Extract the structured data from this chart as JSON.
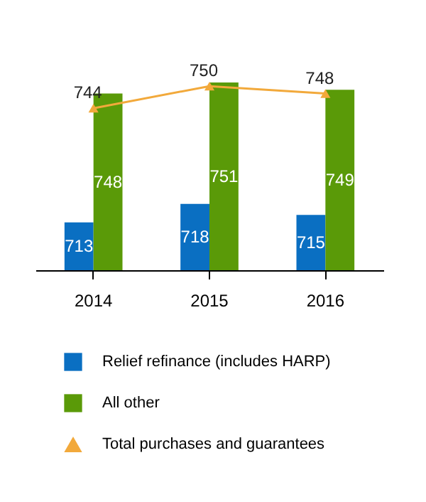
{
  "chart_data": {
    "type": "bar",
    "categories": [
      "2014",
      "2015",
      "2016"
    ],
    "ylim": [
      700,
      751
    ],
    "tick_labels": "x",
    "data_labels": true,
    "legend": "bottom",
    "series": [
      {
        "name": "Relief refinance (includes HARP)",
        "color": "#0a6fc2",
        "values": [
          713,
          718,
          715
        ]
      },
      {
        "name": "All other",
        "color": "#5a9a08",
        "values": [
          748,
          751,
          749
        ]
      },
      {
        "name": "Total purchases and guarantees",
        "type": "line",
        "color": "#f2a93b",
        "marker": "triangle",
        "values": [
          744,
          750,
          748
        ]
      }
    ]
  }
}
